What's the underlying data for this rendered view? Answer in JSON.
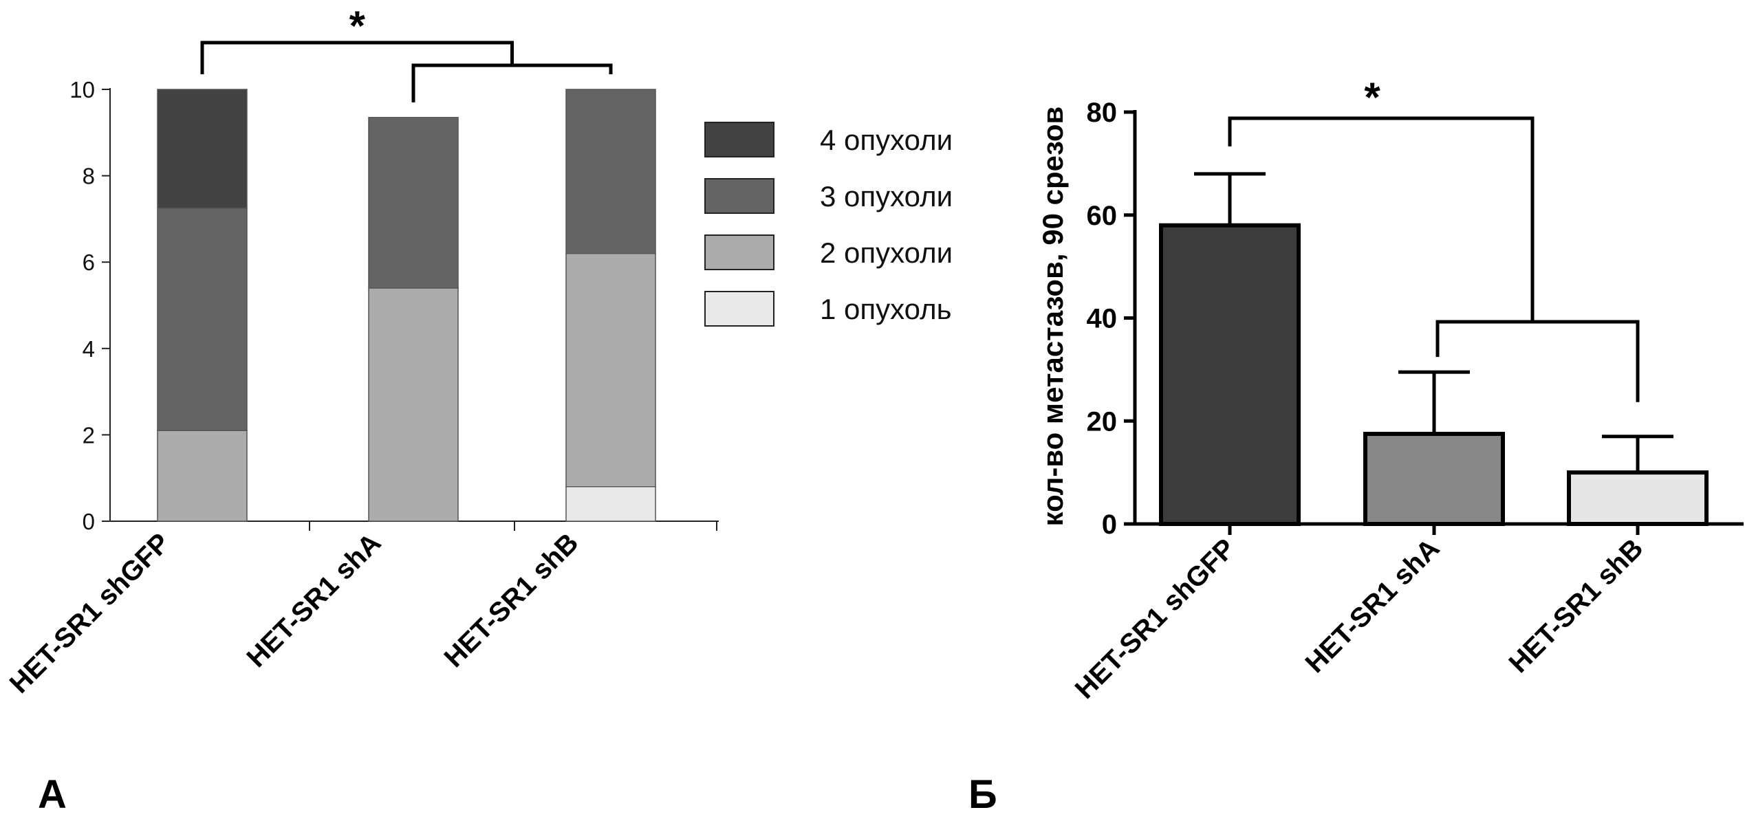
{
  "chart_data": [
    {
      "panel": "А",
      "type": "bar",
      "stacked": true,
      "categories": [
        "HET-SR1 shGFP",
        "HET-SR1 shA",
        "HET-SR1 shB"
      ],
      "series": [
        {
          "name": "1 опухоль",
          "color": "#e9e9e9",
          "values": [
            0,
            0,
            0.8
          ]
        },
        {
          "name": "2  опухоли",
          "color": "#acacac",
          "values": [
            2.1,
            5.4,
            5.4
          ]
        },
        {
          "name": "3 опухоли",
          "color": "#646464",
          "values": [
            5.15,
            3.95,
            3.8
          ]
        },
        {
          "name": "4  опухоли",
          "color": "#424242",
          "values": [
            2.75,
            0,
            0
          ]
        }
      ],
      "ylim": [
        0,
        10
      ],
      "yticks": [
        "0",
        "2",
        "4",
        "6",
        "8",
        "10"
      ],
      "legend_position": "right",
      "significance": "*"
    },
    {
      "panel": "Б",
      "type": "bar",
      "categories": [
        "HET-SR1 shGFP",
        "HET-SR1 shA",
        "HET-SR1 shB"
      ],
      "values": [
        58,
        17.5,
        10
      ],
      "errors": [
        10,
        12,
        7
      ],
      "colors": [
        "#3c3c3c",
        "#878787",
        "#e6e6e6"
      ],
      "ylabel": "кол-во метастазов, 90 срезов",
      "ylim": [
        0,
        80
      ],
      "yticks": [
        "0",
        "20",
        "40",
        "60",
        "80"
      ],
      "significance": "*"
    }
  ]
}
